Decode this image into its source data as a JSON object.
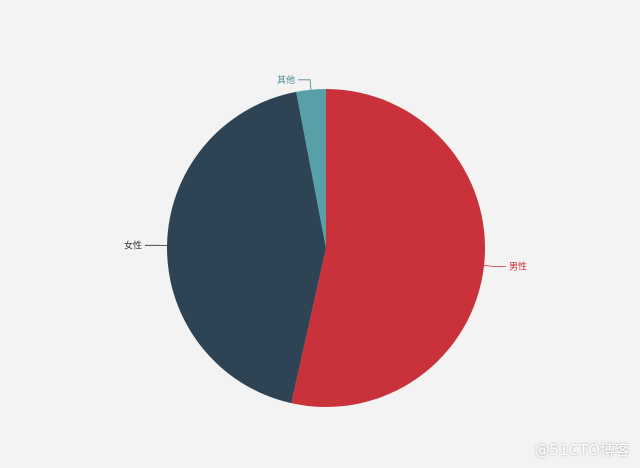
{
  "chart_data": {
    "type": "pie",
    "title": "",
    "slices": [
      {
        "label": "男性",
        "value": 53.5,
        "color": "#c9323a",
        "label_color": "#c9323a"
      },
      {
        "label": "女性",
        "value": 43.5,
        "color": "#2e4454",
        "label_color": "#333333"
      },
      {
        "label": "其他",
        "value": 3.0,
        "color": "#57a0a7",
        "label_color": "#4b8a93"
      }
    ],
    "start": "12 o'clock",
    "direction": "clockwise",
    "legend": "none"
  },
  "watermark": "@51CTO博客"
}
